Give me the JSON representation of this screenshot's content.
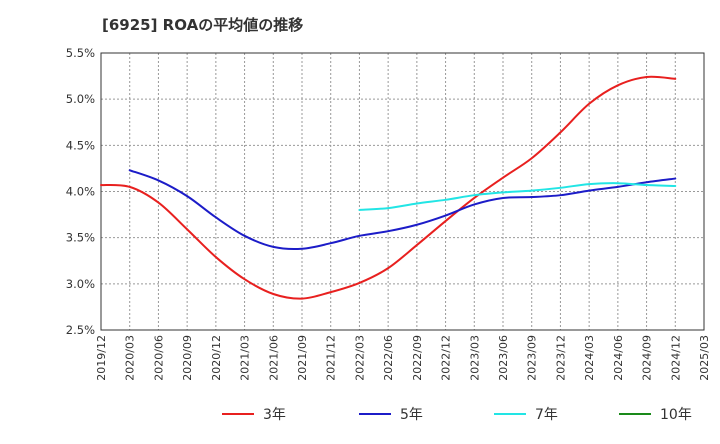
{
  "chart_data": {
    "type": "line",
    "title": "[6925]  ROAの平均値の推移",
    "xlabel": "",
    "ylabel": "",
    "ylim": [
      2.5,
      5.5
    ],
    "y_ticks": [
      "2.5%",
      "3.0%",
      "3.5%",
      "4.0%",
      "4.5%",
      "5.0%",
      "5.5%"
    ],
    "x_ticks": [
      "2019/12",
      "2020/03",
      "2020/06",
      "2020/09",
      "2020/12",
      "2021/03",
      "2021/06",
      "2021/09",
      "2021/12",
      "2022/03",
      "2022/06",
      "2022/09",
      "2022/12",
      "2023/03",
      "2023/06",
      "2023/09",
      "2023/12",
      "2024/03",
      "2024/06",
      "2024/09",
      "2024/12",
      "2025/03"
    ],
    "grid": true,
    "legend_position": "bottom",
    "series": [
      {
        "name": "3年",
        "color": "#e8201f",
        "values": [
          4.07,
          4.05,
          3.88,
          3.59,
          3.29,
          3.05,
          2.89,
          2.84,
          2.91,
          3.01,
          3.17,
          3.42,
          3.68,
          3.93,
          4.15,
          4.36,
          4.64,
          4.95,
          5.15,
          5.24,
          5.22
        ]
      },
      {
        "name": "5年",
        "color": "#1c1cc8",
        "values": [
          null,
          4.23,
          4.12,
          3.95,
          3.72,
          3.52,
          3.4,
          3.38,
          3.44,
          3.52,
          3.57,
          3.64,
          3.74,
          3.86,
          3.93,
          3.94,
          3.96,
          4.01,
          4.05,
          4.1,
          4.14
        ]
      },
      {
        "name": "7年",
        "color": "#22e5e5",
        "values": [
          null,
          null,
          null,
          null,
          null,
          null,
          null,
          null,
          null,
          3.8,
          3.82,
          3.87,
          3.91,
          3.96,
          3.99,
          4.01,
          4.04,
          4.08,
          4.09,
          4.07,
          4.06
        ]
      },
      {
        "name": "10年",
        "color": "#1a8a1a",
        "values": []
      }
    ]
  }
}
